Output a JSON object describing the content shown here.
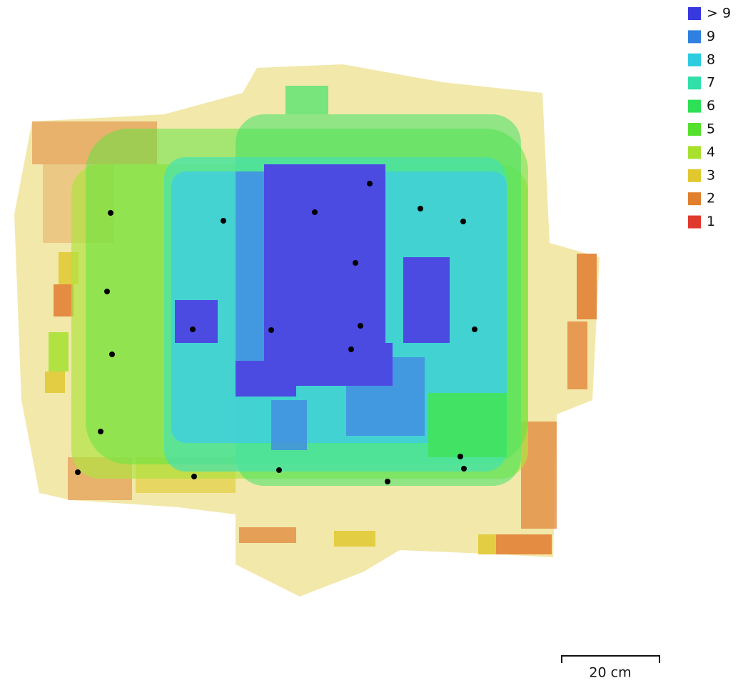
{
  "legend": [
    {
      "label": "> 9",
      "color": "#3838df"
    },
    {
      "label": "9",
      "color": "#2f80e0"
    },
    {
      "label": "8",
      "color": "#2ccbe0"
    },
    {
      "label": "7",
      "color": "#31e0a8"
    },
    {
      "label": "6",
      "color": "#2ee055"
    },
    {
      "label": "5",
      "color": "#55e02e"
    },
    {
      "label": "4",
      "color": "#a8e02e"
    },
    {
      "label": "3",
      "color": "#e0c82e"
    },
    {
      "label": "2",
      "color": "#e0802e"
    },
    {
      "label": "1",
      "color": "#e03a2e"
    }
  ],
  "scale_bar": {
    "label": "20 cm"
  }
}
